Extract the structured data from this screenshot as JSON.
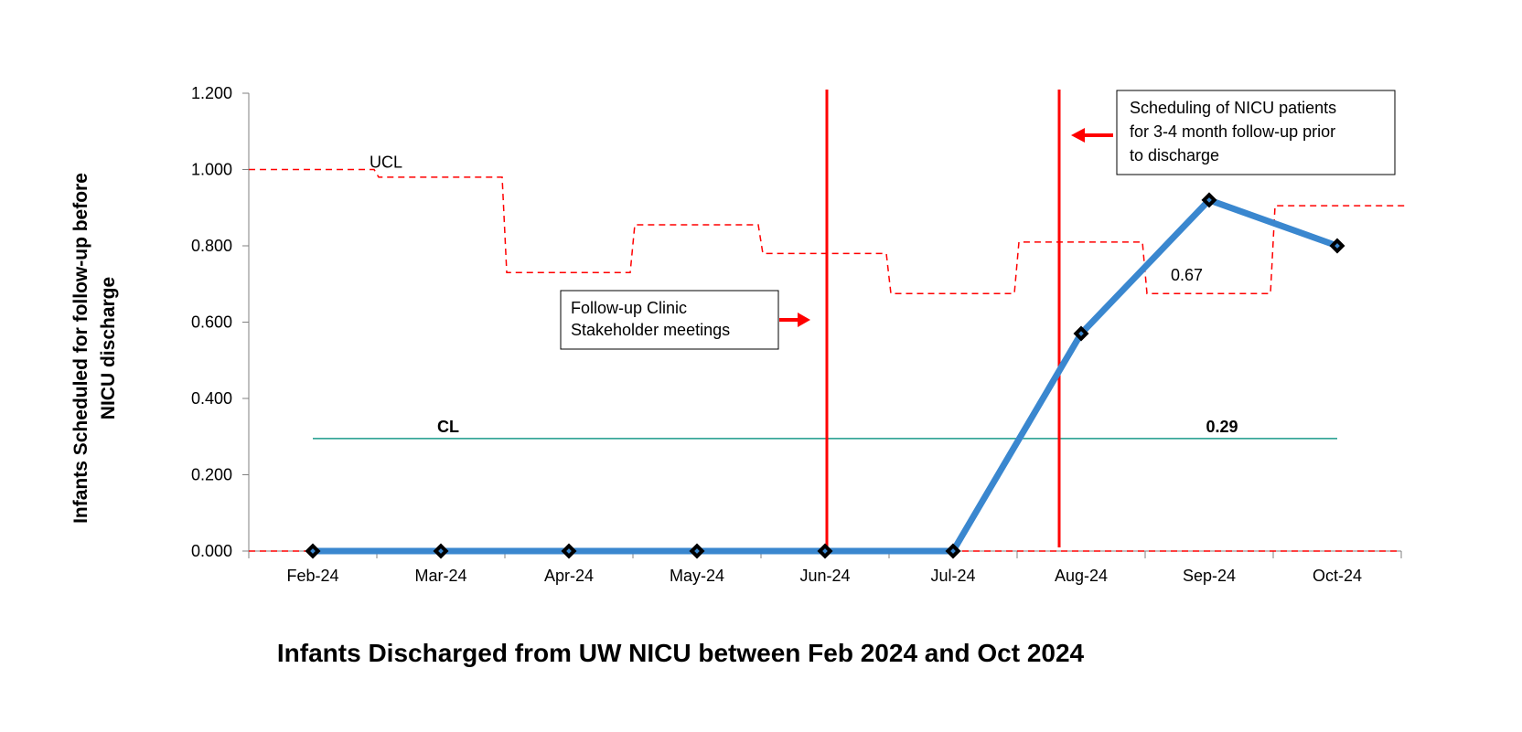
{
  "chart_data": {
    "type": "line",
    "title": "",
    "xlabel": "Infants Discharged from UW NICU between Feb 2024 and Oct 2024",
    "ylabel_line1": "Infants Scheduled for follow-up before",
    "ylabel_line2": "NICU discharge",
    "categories": [
      "Feb-24",
      "Mar-24",
      "Apr-24",
      "May-24",
      "Jun-24",
      "Jul-24",
      "Aug-24",
      "Sep-24",
      "Oct-24"
    ],
    "ylim": [
      0,
      1.2
    ],
    "yticks": [
      "0.000",
      "0.200",
      "0.400",
      "0.600",
      "0.800",
      "1.000",
      "1.200"
    ],
    "series": [
      {
        "values": [
          0,
          0,
          0,
          0,
          0,
          0,
          0.57,
          0.92,
          0.8
        ],
        "color": "#3a87cf"
      }
    ],
    "center_line": {
      "value": 0.295,
      "label": "CL",
      "value_label": "0.29",
      "color": "#1a9a8a"
    },
    "ucl": {
      "label": "UCL",
      "values": [
        1.0,
        0.98,
        0.73,
        0.855,
        0.78,
        0.675,
        0.81,
        0.675,
        0.905
      ],
      "color": "#ff0000"
    },
    "lcl_value": 0,
    "ucl_extra_label": "0.67",
    "intervention_lines": [
      {
        "after_index": 4
      },
      {
        "after_index": 6
      }
    ],
    "annotations": [
      {
        "lines": [
          "Follow-up Clinic",
          "Stakeholder meetings"
        ],
        "arrow": "right"
      },
      {
        "lines": [
          "Scheduling of NICU patients",
          "for 3-4 month follow-up prior",
          "to discharge"
        ],
        "arrow": "left"
      }
    ],
    "grid": false,
    "legend": "none"
  }
}
